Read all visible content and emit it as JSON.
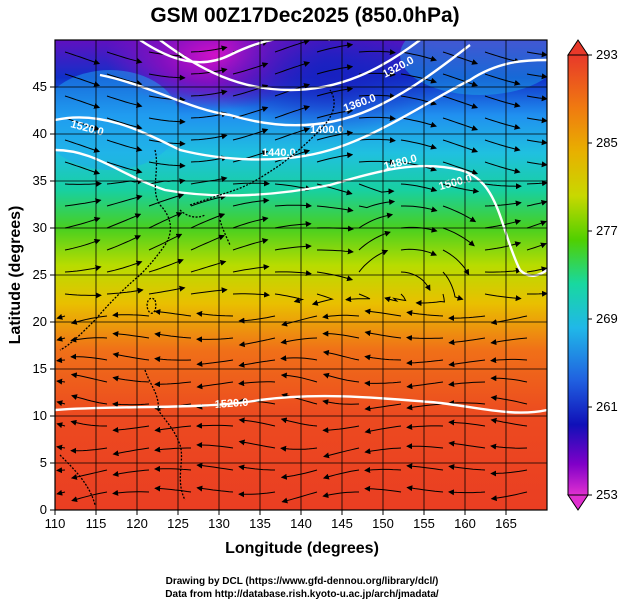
{
  "title": "GSM 00Z17Dec2025 (850.0hPa)",
  "xlabel": "Longitude (degrees)",
  "ylabel": "Latitude  (degrees)",
  "x_ticks": [
    "110",
    "115",
    "120",
    "125",
    "130",
    "135",
    "140",
    "145",
    "150",
    "155",
    "160",
    "165"
  ],
  "x_tick_values": [
    110,
    115,
    120,
    125,
    130,
    135,
    140,
    145,
    150,
    155,
    160,
    165
  ],
  "y_ticks": [
    "0",
    "5",
    "10",
    "15",
    "20",
    "25",
    "30",
    "35",
    "40",
    "45"
  ],
  "y_tick_values": [
    0,
    5,
    10,
    15,
    20,
    25,
    30,
    35,
    40,
    45
  ],
  "lon_range": [
    110,
    170
  ],
  "lat_range": [
    0,
    50
  ],
  "colorbar": {
    "labels": [
      "293",
      "285",
      "277",
      "269",
      "261",
      "253"
    ],
    "values": [
      293,
      285,
      277,
      269,
      261,
      253
    ],
    "colors_top_to_bottom": [
      "#e8392a",
      "#f07a10",
      "#e8b000",
      "#c8d800",
      "#50d000",
      "#18d8a0",
      "#20b8e8",
      "#2060e0",
      "#1010b8",
      "#8000c8",
      "#e030d0"
    ]
  },
  "contour_labels": [
    {
      "text": "1320.0"
    },
    {
      "text": "1360.0"
    },
    {
      "text": "1400.0"
    },
    {
      "text": "1440.0"
    },
    {
      "text": "1520.0"
    },
    {
      "text": "1480.0"
    },
    {
      "text": "1500.0"
    },
    {
      "text": "1520.0"
    }
  ],
  "credits": [
    "Drawing by DCL (https://www.gfd-dennou.org/library/dcl/)",
    "Data from http://database.rish.kyoto-u.ac.jp/arch/jmadata/"
  ]
}
